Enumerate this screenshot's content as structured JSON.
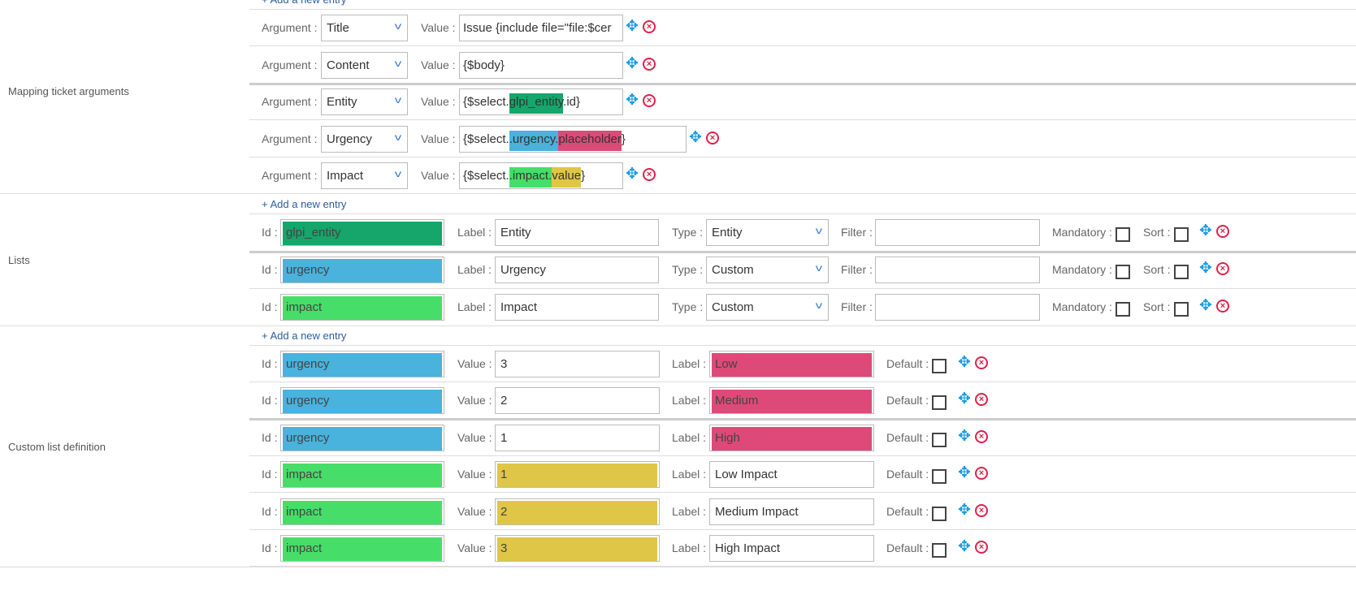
{
  "colors": {
    "green_dark": "#16a56a",
    "blue": "#49b2dd",
    "green": "#47dd69",
    "pink": "#dd4a7a",
    "yellow": "#dfc646"
  },
  "add_entry_label": "+ Add a new entry",
  "mapping": {
    "title": "Mapping ticket arguments",
    "argument_label": "Argument :",
    "value_label": "Value :",
    "rows": [
      {
        "argument": "Title",
        "value": [
          {
            "t": "Issue {include file=\"file:$cer"
          }
        ]
      },
      {
        "argument": "Content",
        "value": [
          {
            "t": "{$body}"
          }
        ]
      },
      {
        "argument": "Entity",
        "value": [
          {
            "t": "{$select."
          },
          {
            "t": "glpi_entity",
            "c": "green_dark"
          },
          {
            "t": ".id}"
          }
        ]
      },
      {
        "argument": "Urgency",
        "value": [
          {
            "t": "{$select."
          },
          {
            "t": ".urgency.",
            "c": "blue"
          },
          {
            "t": "placeholder",
            "c": "pink"
          },
          {
            "t": "}"
          }
        ]
      },
      {
        "argument": "Impact",
        "value": [
          {
            "t": "{$select."
          },
          {
            "t": ".impact.",
            "c": "green"
          },
          {
            "t": "value",
            "c": "yellow"
          },
          {
            "t": "}"
          }
        ]
      }
    ]
  },
  "lists": {
    "title": "Lists",
    "id_label": "Id :",
    "label_label": "Label :",
    "type_label": "Type :",
    "filter_label": "Filter :",
    "mandatory_label": "Mandatory :",
    "sort_label": "Sort :",
    "rows": [
      {
        "id": "glpi_entity",
        "id_color": "green_dark",
        "label": "Entity",
        "type": "Entity",
        "filter": "",
        "mandatory": false,
        "sort": false
      },
      {
        "id": "urgency",
        "id_color": "blue",
        "label": "Urgency",
        "type": "Custom",
        "filter": "",
        "mandatory": false,
        "sort": false
      },
      {
        "id": "impact",
        "id_color": "green",
        "label": "Impact",
        "type": "Custom",
        "filter": "",
        "mandatory": false,
        "sort": false
      }
    ]
  },
  "custom": {
    "title": "Custom list definition",
    "id_label": "Id :",
    "value_label": "Value :",
    "label_label": "Label :",
    "default_label": "Default :",
    "rows": [
      {
        "id": "urgency",
        "id_color": "blue",
        "value": "3",
        "label": "Low",
        "label_color": "pink",
        "default": false
      },
      {
        "id": "urgency",
        "id_color": "blue",
        "value": "2",
        "label": "Medium",
        "label_color": "pink",
        "default": false
      },
      {
        "id": "urgency",
        "id_color": "blue",
        "value": "1",
        "label": "High",
        "label_color": "pink",
        "default": false
      },
      {
        "id": "impact",
        "id_color": "green",
        "value": "1",
        "value_color": "yellow",
        "label": "Low Impact",
        "default": false
      },
      {
        "id": "impact",
        "id_color": "green",
        "value": "2",
        "value_color": "yellow",
        "label": "Medium Impact",
        "default": false
      },
      {
        "id": "impact",
        "id_color": "green",
        "value": "3",
        "value_color": "yellow",
        "label": "High Impact",
        "default": false
      }
    ]
  }
}
